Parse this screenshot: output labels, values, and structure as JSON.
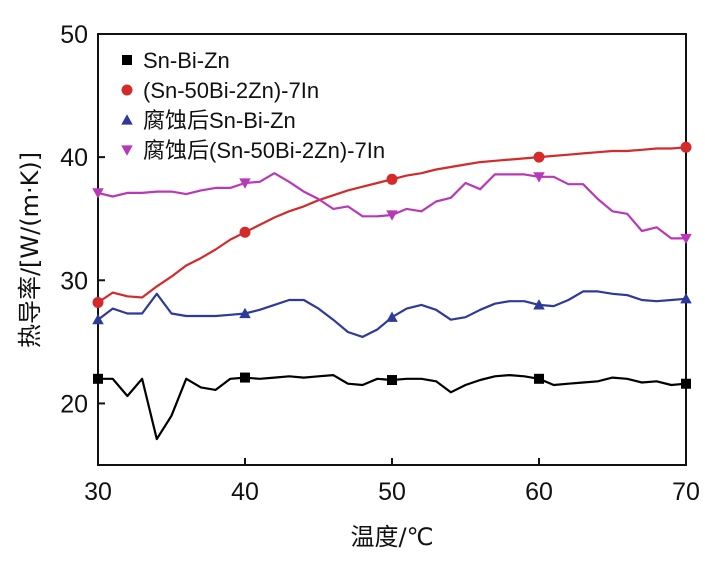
{
  "chart_data": {
    "type": "line",
    "xlabel": "温度/℃",
    "ylabel": "热导率/[W/(m·K)]",
    "xlim": [
      30,
      70
    ],
    "ylim": [
      15,
      50
    ],
    "x_ticks": [
      30,
      40,
      50,
      60,
      70
    ],
    "y_ticks": [
      20,
      30,
      40,
      50
    ],
    "grid": false,
    "legend_position": "top-left",
    "series": [
      {
        "name": "Sn-Bi-Zn",
        "color": "#000000",
        "marker": "square",
        "x": [
          30,
          31,
          32,
          33,
          34,
          35,
          36,
          37,
          38,
          39,
          40,
          41,
          42,
          43,
          44,
          45,
          46,
          47,
          48,
          49,
          50,
          51,
          52,
          53,
          54,
          55,
          56,
          57,
          58,
          59,
          60,
          61,
          62,
          63,
          64,
          65,
          66,
          67,
          68,
          69,
          70
        ],
        "values": [
          22,
          22,
          20.6,
          22,
          17.1,
          19,
          22,
          21.3,
          21.1,
          22,
          22.1,
          22,
          22.1,
          22.2,
          22.1,
          22.2,
          22.3,
          21.6,
          21.5,
          22,
          21.9,
          22,
          22,
          21.8,
          20.9,
          21.5,
          21.9,
          22.2,
          22.3,
          22.2,
          22,
          21.5,
          21.6,
          21.7,
          21.8,
          22.1,
          22,
          21.7,
          21.8,
          21.5,
          21.6
        ],
        "marker_x": [
          30,
          40,
          50,
          60,
          70
        ]
      },
      {
        "name": "(Sn-50Bi-2Zn)-7In",
        "color": "#d42a2a",
        "marker": "circle",
        "x": [
          30,
          31,
          32,
          33,
          34,
          35,
          36,
          37,
          38,
          39,
          40,
          41,
          42,
          43,
          44,
          45,
          46,
          47,
          48,
          49,
          50,
          51,
          52,
          53,
          54,
          55,
          56,
          57,
          58,
          59,
          60,
          61,
          62,
          63,
          64,
          65,
          66,
          67,
          68,
          69,
          70
        ],
        "values": [
          28.2,
          29,
          28.7,
          28.6,
          29.5,
          30.3,
          31.2,
          31.8,
          32.5,
          33.3,
          33.9,
          34.5,
          35.1,
          35.6,
          36,
          36.5,
          36.9,
          37.3,
          37.6,
          37.9,
          38.2,
          38.5,
          38.7,
          39,
          39.2,
          39.4,
          39.6,
          39.7,
          39.8,
          39.9,
          40,
          40.1,
          40.2,
          40.3,
          40.4,
          40.5,
          40.5,
          40.6,
          40.7,
          40.7,
          40.8
        ],
        "marker_x": [
          30,
          40,
          50,
          60,
          70
        ]
      },
      {
        "name": "腐蚀后Sn-Bi-Zn",
        "color": "#2e3a9a",
        "marker": "triangle-up",
        "x": [
          30,
          31,
          32,
          33,
          34,
          35,
          36,
          37,
          38,
          39,
          40,
          41,
          42,
          43,
          44,
          45,
          46,
          47,
          48,
          49,
          50,
          51,
          52,
          53,
          54,
          55,
          56,
          57,
          58,
          59,
          60,
          61,
          62,
          63,
          64,
          65,
          66,
          67,
          68,
          69,
          70
        ],
        "values": [
          26.8,
          27.7,
          27.3,
          27.3,
          28.9,
          27.3,
          27.1,
          27.1,
          27.1,
          27.2,
          27.3,
          27.6,
          28,
          28.4,
          28.4,
          27.7,
          26.8,
          25.8,
          25.4,
          26,
          27,
          27.7,
          28,
          27.6,
          26.8,
          27,
          27.6,
          28.1,
          28.3,
          28.3,
          28,
          27.9,
          28.4,
          29.1,
          29.1,
          28.9,
          28.8,
          28.4,
          28.3,
          28.4,
          28.5
        ],
        "marker_x": [
          30,
          40,
          50,
          60,
          70
        ]
      },
      {
        "name": "腐蚀后(Sn-50Bi-2Zn)-7In",
        "color": "#b838b8",
        "marker": "triangle-down",
        "x": [
          30,
          31,
          32,
          33,
          34,
          35,
          36,
          37,
          38,
          39,
          40,
          41,
          42,
          43,
          44,
          45,
          46,
          47,
          48,
          49,
          50,
          51,
          52,
          53,
          54,
          55,
          56,
          57,
          58,
          59,
          60,
          61,
          62,
          63,
          64,
          65,
          66,
          67,
          68,
          69,
          70
        ],
        "values": [
          37.1,
          36.8,
          37.1,
          37.1,
          37.2,
          37.2,
          37,
          37.3,
          37.5,
          37.5,
          37.9,
          38,
          38.7,
          38,
          37.2,
          36.6,
          35.8,
          36,
          35.2,
          35.2,
          35.3,
          35.8,
          35.6,
          36.4,
          36.7,
          37.9,
          37.4,
          38.6,
          38.6,
          38.6,
          38.4,
          38.4,
          37.8,
          37.8,
          36.6,
          35.6,
          35.4,
          34,
          34.3,
          33.4,
          33.4
        ],
        "marker_x": [
          30,
          40,
          50,
          60,
          70
        ]
      }
    ]
  }
}
